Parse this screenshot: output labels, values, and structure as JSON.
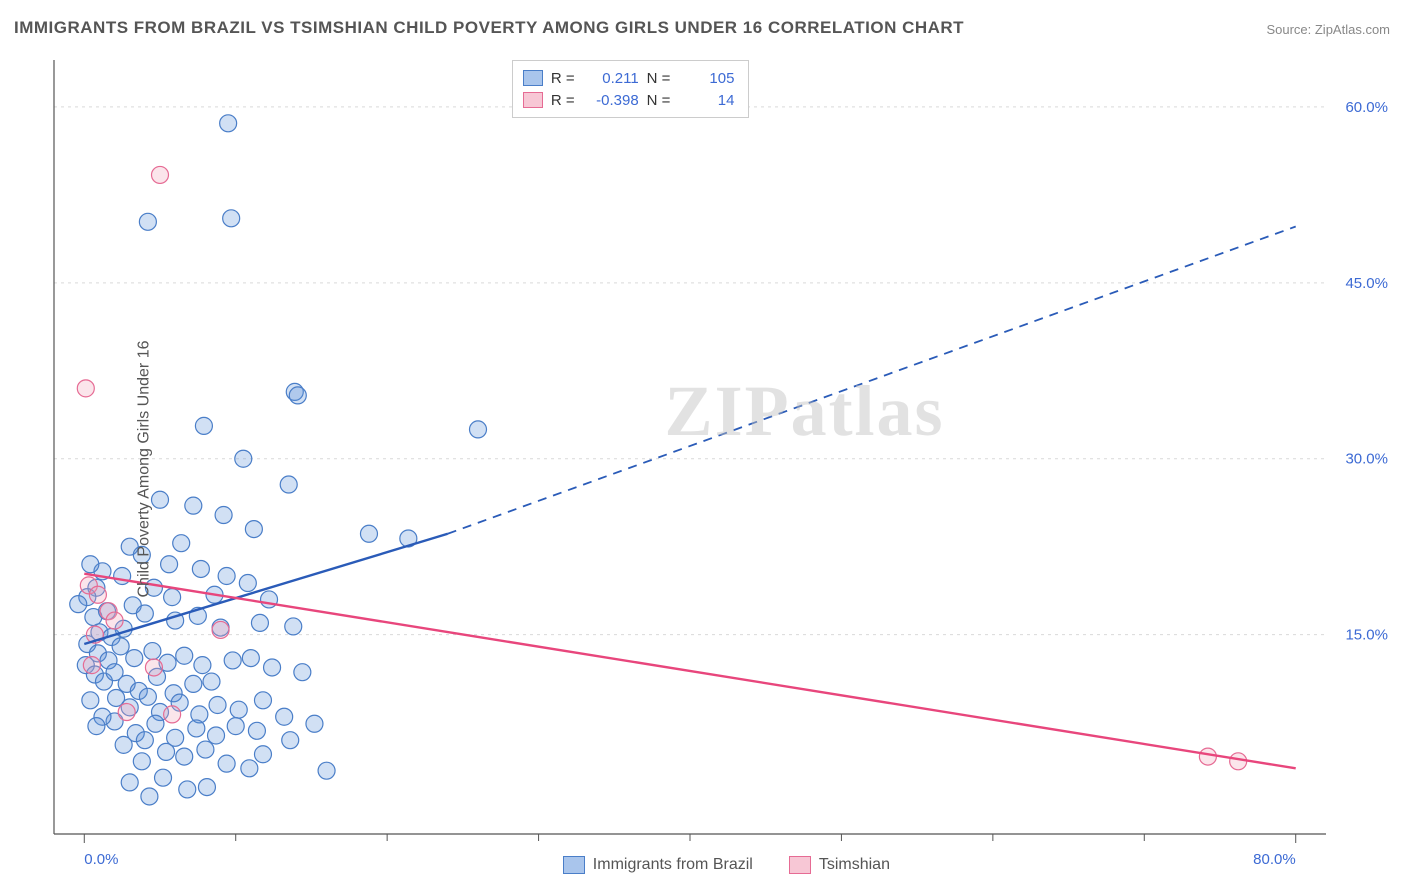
{
  "title": "IMMIGRANTS FROM BRAZIL VS TSIMSHIAN CHILD POVERTY AMONG GIRLS UNDER 16 CORRELATION CHART",
  "source_label": "Source: ZipAtlas.com",
  "ylabel": "Child Poverty Among Girls Under 16",
  "watermark": "ZIPatlas",
  "chart": {
    "type": "scatter",
    "background_color": "#ffffff",
    "grid_color": "#d9d9d9",
    "axis_color": "#555555",
    "tick_label_color": "#3c6ad4",
    "xlim": [
      -2,
      82
    ],
    "ylim": [
      -2,
      64
    ],
    "x_tick_labels": [
      {
        "v": 0,
        "label": "0.0%"
      },
      {
        "v": 80,
        "label": "80.0%"
      }
    ],
    "x_minor_ticks": [
      10,
      20,
      30,
      40,
      50,
      60,
      70
    ],
    "y_tick_labels": [
      {
        "v": 15,
        "label": "15.0%"
      },
      {
        "v": 30,
        "label": "30.0%"
      },
      {
        "v": 45,
        "label": "45.0%"
      },
      {
        "v": 60,
        "label": "60.0%"
      }
    ],
    "y_gridlines": [
      15,
      30,
      45,
      60
    ],
    "marker_radius": 8.5,
    "marker_stroke_width": 1.2,
    "marker_fill_opacity": 0.28,
    "series": [
      {
        "name": "Immigrants from Brazil",
        "color": "#5a8fd6",
        "stroke": "#4a7ec8",
        "reg_color": "#2a5bb8",
        "reg_solid": {
          "x1": 0,
          "y1": 14.2,
          "x2": 24,
          "y2": 23.6
        },
        "reg_dash": {
          "x1": 24,
          "y1": 23.6,
          "x2": 80,
          "y2": 49.8
        },
        "R": "0.211",
        "N": "105",
        "points": [
          [
            9.5,
            58.6
          ],
          [
            9.7,
            50.5
          ],
          [
            4.2,
            50.2
          ],
          [
            13.9,
            35.7
          ],
          [
            14.1,
            35.4
          ],
          [
            7.9,
            32.8
          ],
          [
            26.0,
            32.5
          ],
          [
            10.5,
            30.0
          ],
          [
            13.5,
            27.8
          ],
          [
            5.0,
            26.5
          ],
          [
            7.2,
            26.0
          ],
          [
            9.2,
            25.2
          ],
          [
            11.2,
            24.0
          ],
          [
            18.8,
            23.6
          ],
          [
            21.4,
            23.2
          ],
          [
            3.0,
            22.5
          ],
          [
            3.8,
            21.8
          ],
          [
            5.6,
            21.0
          ],
          [
            6.4,
            22.8
          ],
          [
            7.7,
            20.6
          ],
          [
            9.4,
            20.0
          ],
          [
            10.8,
            19.4
          ],
          [
            2.5,
            20.0
          ],
          [
            1.2,
            20.4
          ],
          [
            0.4,
            21.0
          ],
          [
            0.8,
            19.0
          ],
          [
            4.6,
            19.0
          ],
          [
            5.8,
            18.2
          ],
          [
            8.6,
            18.4
          ],
          [
            12.2,
            18.0
          ],
          [
            3.2,
            17.5
          ],
          [
            4.0,
            16.8
          ],
          [
            6.0,
            16.2
          ],
          [
            7.5,
            16.6
          ],
          [
            9.0,
            15.6
          ],
          [
            11.6,
            16.0
          ],
          [
            13.8,
            15.7
          ],
          [
            0.2,
            18.2
          ],
          [
            -0.4,
            17.6
          ],
          [
            0.6,
            16.5
          ],
          [
            1.5,
            17.0
          ],
          [
            1.0,
            15.2
          ],
          [
            1.8,
            14.8
          ],
          [
            2.6,
            15.5
          ],
          [
            0.2,
            14.2
          ],
          [
            0.9,
            13.4
          ],
          [
            1.6,
            12.8
          ],
          [
            2.4,
            14.0
          ],
          [
            3.3,
            13.0
          ],
          [
            4.5,
            13.6
          ],
          [
            5.5,
            12.6
          ],
          [
            6.6,
            13.2
          ],
          [
            7.8,
            12.4
          ],
          [
            9.8,
            12.8
          ],
          [
            11.0,
            13.0
          ],
          [
            12.4,
            12.2
          ],
          [
            0.1,
            12.4
          ],
          [
            0.7,
            11.6
          ],
          [
            1.3,
            11.0
          ],
          [
            2.0,
            11.8
          ],
          [
            2.8,
            10.8
          ],
          [
            3.6,
            10.2
          ],
          [
            4.8,
            11.4
          ],
          [
            5.9,
            10.0
          ],
          [
            7.2,
            10.8
          ],
          [
            8.4,
            11.0
          ],
          [
            2.1,
            9.6
          ],
          [
            3.0,
            8.8
          ],
          [
            4.2,
            9.7
          ],
          [
            5.0,
            8.4
          ],
          [
            6.3,
            9.2
          ],
          [
            7.6,
            8.2
          ],
          [
            8.8,
            9.0
          ],
          [
            10.2,
            8.6
          ],
          [
            11.8,
            9.4
          ],
          [
            13.2,
            8.0
          ],
          [
            2.0,
            7.6
          ],
          [
            1.2,
            8.0
          ],
          [
            0.4,
            9.4
          ],
          [
            0.8,
            7.2
          ],
          [
            3.4,
            6.6
          ],
          [
            4.7,
            7.4
          ],
          [
            6.0,
            6.2
          ],
          [
            7.4,
            7.0
          ],
          [
            8.7,
            6.4
          ],
          [
            10.0,
            7.2
          ],
          [
            11.4,
            6.8
          ],
          [
            2.6,
            5.6
          ],
          [
            4.0,
            6.0
          ],
          [
            5.4,
            5.0
          ],
          [
            3.8,
            4.2
          ],
          [
            6.6,
            4.6
          ],
          [
            8.0,
            5.2
          ],
          [
            9.4,
            4.0
          ],
          [
            11.8,
            4.8
          ],
          [
            10.9,
            3.6
          ],
          [
            13.6,
            6.0
          ],
          [
            15.2,
            7.4
          ],
          [
            14.4,
            11.8
          ],
          [
            16.0,
            3.4
          ],
          [
            5.2,
            2.8
          ],
          [
            6.8,
            1.8
          ],
          [
            8.1,
            2.0
          ],
          [
            4.3,
            1.2
          ],
          [
            3.0,
            2.4
          ]
        ]
      },
      {
        "name": "Tsimshian",
        "color": "#f2a2b8",
        "stroke": "#e66b94",
        "reg_color": "#e8467c",
        "reg_solid": {
          "x1": 0,
          "y1": 20.2,
          "x2": 80,
          "y2": 3.6
        },
        "reg_dash": null,
        "R": "-0.398",
        "N": "14",
        "points": [
          [
            5.0,
            54.2
          ],
          [
            0.1,
            36.0
          ],
          [
            0.3,
            19.2
          ],
          [
            0.9,
            18.4
          ],
          [
            1.6,
            17.0
          ],
          [
            2.0,
            16.2
          ],
          [
            0.7,
            15.0
          ],
          [
            9.0,
            15.4
          ],
          [
            4.6,
            12.2
          ],
          [
            0.5,
            12.4
          ],
          [
            5.8,
            8.2
          ],
          [
            2.8,
            8.4
          ],
          [
            74.2,
            4.6
          ],
          [
            76.2,
            4.2
          ]
        ]
      }
    ]
  },
  "legend": {
    "stat_box": [
      {
        "swatch_fill": "#a9c5ec",
        "swatch_stroke": "#4a7ec8"
      },
      {
        "swatch_fill": "#f7c7d5",
        "swatch_stroke": "#e66b94"
      }
    ],
    "R_label": "R =",
    "N_label": "N =",
    "bottom_items": [
      {
        "label": "Immigrants from Brazil",
        "fill": "#a9c5ec",
        "stroke": "#4a7ec8"
      },
      {
        "label": "Tsimshian",
        "fill": "#f7c7d5",
        "stroke": "#e66b94"
      }
    ]
  }
}
